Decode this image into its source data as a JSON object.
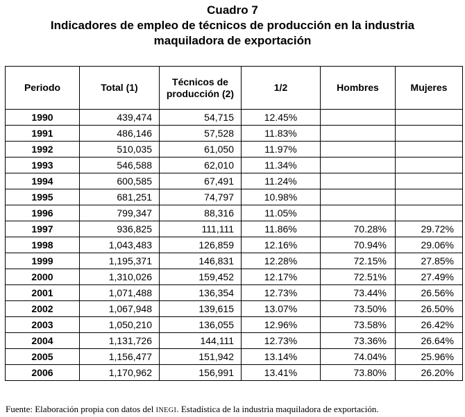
{
  "title": {
    "line1": "Cuadro 7",
    "line2": "Indicadores de empleo de técnicos de producción en la industria",
    "line3": "maquiladora de exportación"
  },
  "table": {
    "headers": [
      "Periodo",
      "Total (1)",
      "Técnicos de producción (2)",
      "1/2",
      "Hombres",
      "Mujeres"
    ],
    "rows": [
      [
        "1990",
        "439,474",
        "54,715",
        "12.45%",
        "",
        ""
      ],
      [
        "1991",
        "486,146",
        "57,528",
        "11.83%",
        "",
        ""
      ],
      [
        "1992",
        "510,035",
        "61,050",
        "11.97%",
        "",
        ""
      ],
      [
        "1993",
        "546,588",
        "62,010",
        "11.34%",
        "",
        ""
      ],
      [
        "1994",
        "600,585",
        "67,491",
        "11.24%",
        "",
        ""
      ],
      [
        "1995",
        "681,251",
        "74,797",
        "10.98%",
        "",
        ""
      ],
      [
        "1996",
        "799,347",
        "88,316",
        "11.05%",
        "",
        ""
      ],
      [
        "1997",
        "936,825",
        "111,111",
        "11.86%",
        "70.28%",
        "29.72%"
      ],
      [
        "1998",
        "1,043,483",
        "126,859",
        "12.16%",
        "70.94%",
        "29.06%"
      ],
      [
        "1999",
        "1,195,371",
        "146,831",
        "12.28%",
        "72.15%",
        "27.85%"
      ],
      [
        "2000",
        "1,310,026",
        "159,452",
        "12.17%",
        "72.51%",
        "27.49%"
      ],
      [
        "2001",
        "1,071,488",
        "136,354",
        "12.73%",
        "73.44%",
        "26.56%"
      ],
      [
        "2002",
        "1,067,948",
        "139,615",
        "13.07%",
        "73.50%",
        "26.50%"
      ],
      [
        "2003",
        "1,050,210",
        "136,055",
        "12.96%",
        "73.58%",
        "26.42%"
      ],
      [
        "2004",
        "1,131,726",
        "144,111",
        "12.73%",
        "73.36%",
        "26.64%"
      ],
      [
        "2005",
        "1,156,477",
        "151,942",
        "13.14%",
        "74.04%",
        "25.96%"
      ],
      [
        "2006",
        "1,170,962",
        "156,991",
        "13.41%",
        "73.80%",
        "26.20%"
      ]
    ]
  },
  "source": {
    "prefix": "Fuente: Elaboración propia con datos del ",
    "org": "INEGI",
    "suffix": ". Estadística de la industria maquiladora de exportación."
  }
}
